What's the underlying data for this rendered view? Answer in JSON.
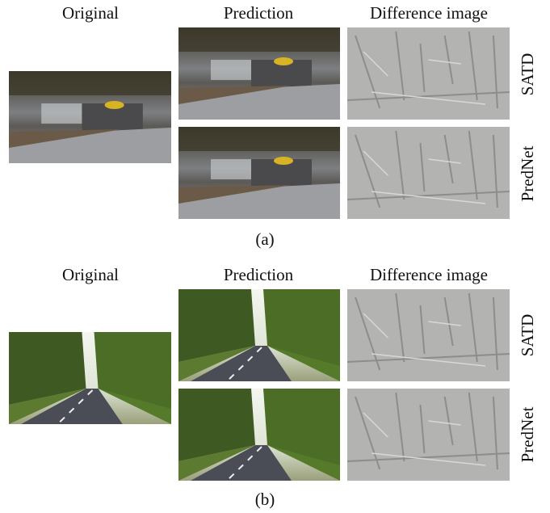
{
  "panels": [
    {
      "column_headers": [
        "Original",
        "Prediction",
        "Difference image"
      ],
      "row_labels": [
        "SATD",
        "PredNet"
      ],
      "label": "(a)"
    },
    {
      "column_headers": [
        "Original",
        "Prediction",
        "Difference image"
      ],
      "row_labels": [
        "SATD",
        "PredNet"
      ],
      "label": "(b)"
    }
  ]
}
